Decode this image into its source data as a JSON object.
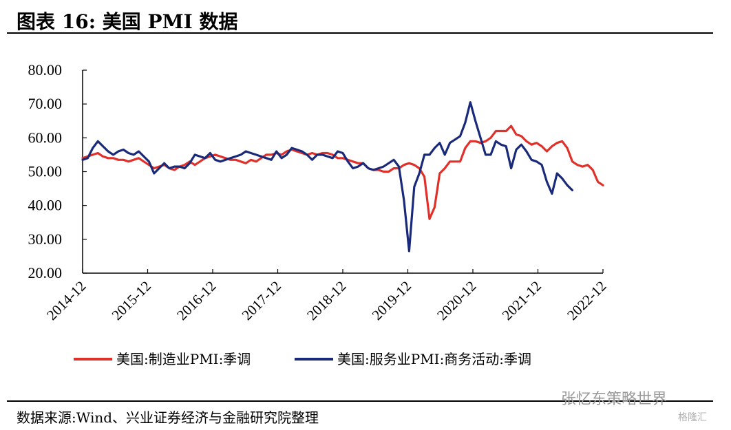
{
  "header": {
    "title": "图表 16:  美国 PMI 数据"
  },
  "footer": {
    "source": "数据来源:Wind、兴业证券经济与金融研究院整理",
    "watermark": "张忆东策略世界",
    "watermark_small": "格隆汇"
  },
  "colors": {
    "manufacturing": "#e0302a",
    "services": "#1a2a7a",
    "axis": "#000000"
  },
  "chart_data": {
    "type": "line",
    "title": "美国 PMI 数据",
    "xlabel": "",
    "ylabel": "",
    "ylim": [
      20,
      80
    ],
    "yticks": [
      "20.00",
      "30.00",
      "40.00",
      "50.00",
      "60.00",
      "70.00",
      "80.00"
    ],
    "xtick_labels": [
      "2014-12",
      "2015-12",
      "2016-12",
      "2017-12",
      "2018-12",
      "2019-12",
      "2020-12",
      "2021-12",
      "2022-12"
    ],
    "x_start": "2014-12",
    "x_end": "2022-12",
    "grid": false,
    "legend": "bottom",
    "series": [
      {
        "name": "美国:制造业PMI:季调",
        "color": "#e0302a",
        "values": [
          54,
          54.5,
          55,
          55.5,
          54.5,
          54,
          54,
          53.5,
          53.5,
          53,
          53.5,
          54,
          53,
          52,
          51,
          51.5,
          52,
          51,
          50.5,
          51.5,
          52,
          53,
          52,
          53,
          54,
          54.5,
          55,
          54.5,
          54,
          53.5,
          53.5,
          53,
          52.5,
          53.5,
          53,
          54,
          55,
          55,
          55.5,
          55,
          56,
          56.5,
          56,
          55.5,
          55,
          55.5,
          55,
          55.5,
          55.5,
          55,
          54,
          54,
          53.5,
          53,
          52.5,
          52.5,
          51,
          50.5,
          50.5,
          50,
          50,
          51,
          51,
          52,
          52.5,
          52,
          51,
          48.5,
          36,
          39.5,
          49.5,
          51,
          53,
          53,
          53,
          57,
          59,
          59,
          58.5,
          59,
          60,
          62,
          62,
          62,
          63.5,
          61,
          60.5,
          59,
          58,
          58.5,
          57.5,
          56,
          57.5,
          58.5,
          59,
          57,
          53,
          52,
          51.5,
          52,
          50.5,
          47,
          46
        ]
      },
      {
        "name": "美国:服务业PMI:商务活动:季调",
        "color": "#1a2a7a",
        "values": [
          53.5,
          54,
          57,
          59,
          57.5,
          56,
          55,
          56,
          56.5,
          55.5,
          55,
          56,
          54.5,
          53,
          49.5,
          51,
          52.5,
          51,
          51.5,
          51.5,
          51,
          52.5,
          55,
          54.5,
          54,
          55.5,
          53.5,
          53,
          53.5,
          54,
          54.5,
          55,
          56,
          55.5,
          55,
          54.5,
          54,
          53.5,
          56,
          54,
          55,
          57,
          56.5,
          56,
          55,
          53.5,
          55,
          55,
          54.5,
          54,
          56,
          55.5,
          53,
          51,
          51.5,
          52.5,
          51,
          50.5,
          51,
          51.5,
          52.5,
          53.5,
          51.5,
          41.5,
          26.5,
          45.5,
          49.5,
          55,
          55,
          57,
          58.5,
          55,
          58.5,
          59.5,
          60.5,
          64.5,
          70.5,
          65,
          60,
          55,
          55,
          59,
          58,
          57.5,
          51,
          56.5,
          58,
          56,
          53.5,
          53,
          52,
          47,
          43.5,
          49.5,
          48,
          46,
          44.5
        ]
      }
    ]
  }
}
